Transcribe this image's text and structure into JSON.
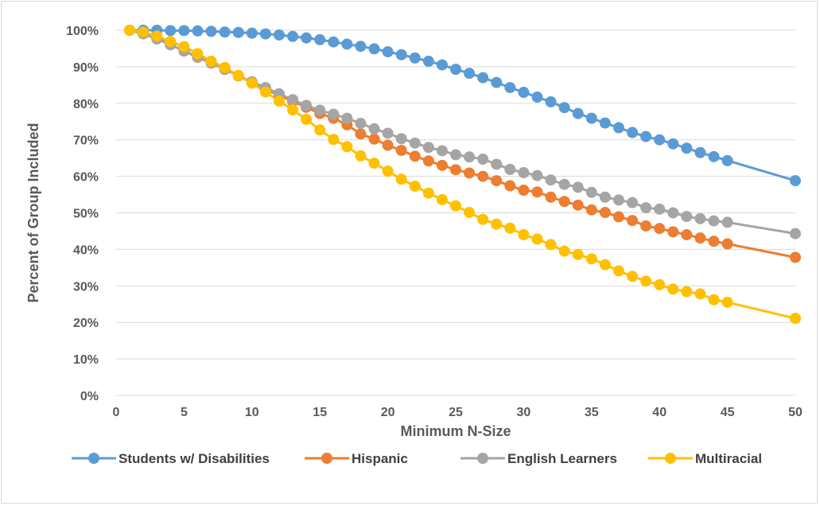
{
  "chart_data": {
    "type": "line",
    "title": "",
    "xlabel": "Minimum N-Size",
    "ylabel": "Percent of Group Included",
    "xlim": [
      0,
      50
    ],
    "ylim": [
      0,
      100
    ],
    "x_ticks": [
      "0",
      "5",
      "10",
      "15",
      "20",
      "25",
      "30",
      "35",
      "40",
      "45",
      "50"
    ],
    "y_ticks": [
      "0%",
      "10%",
      "20%",
      "30%",
      "40%",
      "50%",
      "60%",
      "70%",
      "80%",
      "90%",
      "100%"
    ],
    "grid": "horizontal",
    "legend_position": "bottom",
    "x": [
      1,
      2,
      3,
      4,
      5,
      6,
      7,
      8,
      9,
      10,
      11,
      12,
      13,
      14,
      15,
      16,
      17,
      18,
      19,
      20,
      21,
      22,
      23,
      24,
      25,
      26,
      27,
      28,
      29,
      30,
      31,
      32,
      33,
      34,
      35,
      36,
      37,
      38,
      39,
      40,
      41,
      42,
      43,
      44,
      45,
      50
    ],
    "series": [
      {
        "name": "Students w/ Disabilities",
        "color": "#5b9bd5",
        "values": [
          100,
          100,
          100,
          99.9,
          99.9,
          99.8,
          99.7,
          99.5,
          99.4,
          99.2,
          99.0,
          98.7,
          98.3,
          97.9,
          97.4,
          96.8,
          96.2,
          95.6,
          94.9,
          94.1,
          93.3,
          92.4,
          91.5,
          90.5,
          89.3,
          88.2,
          87.0,
          85.7,
          84.3,
          83.0,
          81.7,
          80.4,
          78.8,
          77.2,
          75.9,
          74.6,
          73.3,
          72.0,
          70.9,
          70.0,
          68.9,
          67.7,
          66.5,
          65.4,
          64.3,
          58.8
        ]
      },
      {
        "name": "Hispanic",
        "color": "#ed7d31",
        "values": [
          100,
          99.1,
          97.8,
          96.1,
          94.3,
          92.6,
          91.0,
          89.3,
          87.5,
          85.6,
          83.8,
          82.2,
          80.5,
          78.9,
          77.2,
          75.9,
          74.1,
          71.6,
          70.2,
          68.5,
          67.1,
          65.5,
          64.2,
          63.0,
          61.8,
          60.9,
          60.0,
          58.8,
          57.4,
          56.2,
          55.7,
          54.3,
          53.1,
          52.1,
          50.8,
          50.1,
          48.9,
          47.9,
          46.4,
          45.7,
          44.8,
          44.0,
          43.1,
          42.2,
          41.5,
          37.8
        ]
      },
      {
        "name": "English Learners",
        "color": "#a5a5a5",
        "values": [
          100,
          99.0,
          97.6,
          96.0,
          94.4,
          92.8,
          91.1,
          89.4,
          87.6,
          85.9,
          84.3,
          82.6,
          81.0,
          79.4,
          78.1,
          77.0,
          75.9,
          74.5,
          73.0,
          71.8,
          70.3,
          69.1,
          67.9,
          67.0,
          65.9,
          65.3,
          64.7,
          63.3,
          61.9,
          61.0,
          60.2,
          59.0,
          57.8,
          57.0,
          55.6,
          54.3,
          53.5,
          52.8,
          51.4,
          51.0,
          50.0,
          49.0,
          48.4,
          47.8,
          47.4,
          44.3
        ]
      },
      {
        "name": "Multiracial",
        "color": "#ffc000",
        "values": [
          100,
          99.5,
          98.4,
          96.9,
          95.5,
          93.6,
          91.5,
          89.8,
          87.6,
          85.5,
          83.1,
          80.6,
          78.2,
          75.6,
          72.7,
          70.1,
          68.1,
          65.6,
          63.6,
          61.4,
          59.2,
          57.3,
          55.4,
          53.6,
          51.9,
          50.1,
          48.2,
          46.9,
          45.8,
          44.0,
          42.8,
          41.3,
          39.5,
          38.6,
          37.4,
          35.8,
          34.1,
          32.6,
          31.3,
          30.3,
          29.1,
          28.4,
          27.8,
          26.2,
          25.5,
          21.1
        ]
      }
    ]
  }
}
